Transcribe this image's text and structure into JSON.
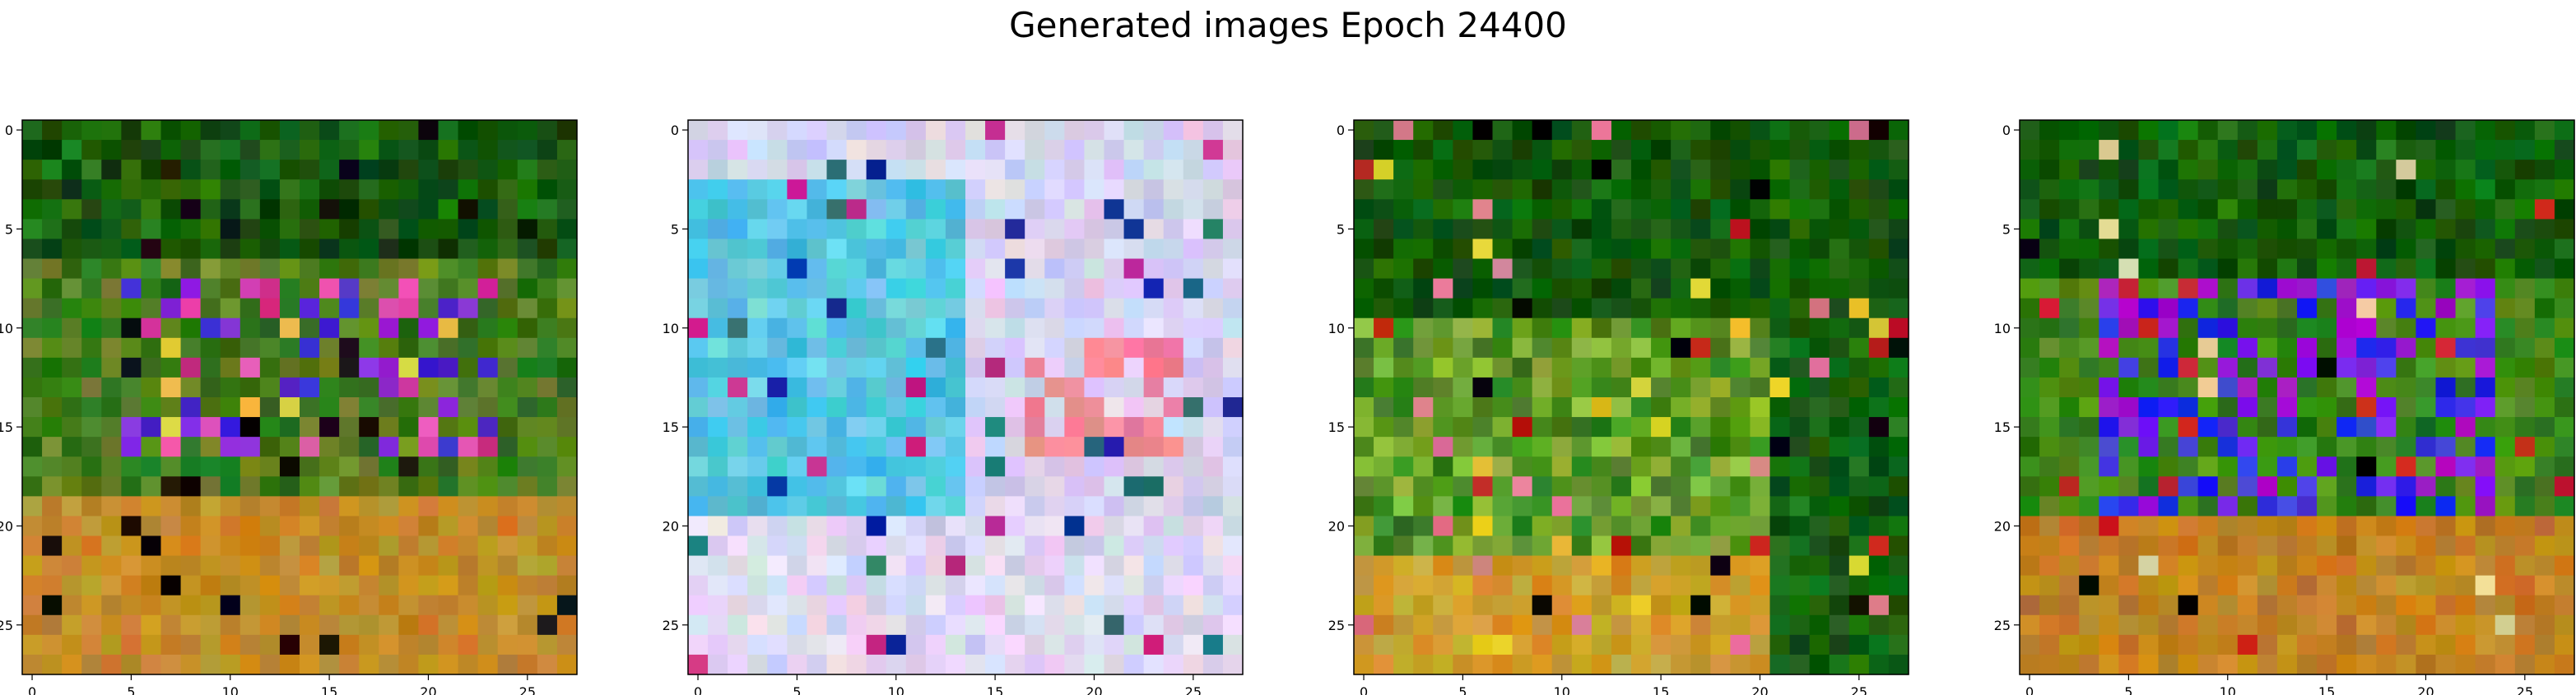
{
  "figure": {
    "title": "Generated images Epoch 24400"
  },
  "chart_data": [
    {
      "type": "heatmap",
      "title": "",
      "style": "greenfield",
      "description_colors": [
        "#0f6b0a",
        "#2a8a12",
        "#3a3ad8",
        "#c0287e",
        "#c8a828",
        "#d8821a"
      ],
      "xlim": [
        -0.5,
        27.5
      ],
      "ylim": [
        27.5,
        -0.5
      ],
      "xticks": [
        0,
        5,
        10,
        15,
        20,
        25
      ],
      "yticks": [
        0,
        5,
        10,
        15,
        20,
        25
      ]
    },
    {
      "type": "heatmap",
      "title": "",
      "style": "pastel",
      "description_colors": [
        "#4fd0e4",
        "#2aa8c8",
        "#c8c8f0",
        "#e8c8ec",
        "#f07890",
        "#1a3aa8"
      ],
      "xlim": [
        -0.5,
        27.5
      ],
      "ylim": [
        27.5,
        -0.5
      ],
      "xticks": [
        0,
        5,
        10,
        15,
        20,
        25
      ],
      "yticks": [
        0,
        5,
        10,
        15,
        20,
        25
      ]
    },
    {
      "type": "heatmap",
      "title": "",
      "style": "forest",
      "description_colors": [
        "#0c5a08",
        "#2a8a10",
        "#9ac83a",
        "#e0a820",
        "#c0281a",
        "#000000"
      ],
      "xlim": [
        -0.5,
        27.5
      ],
      "ylim": [
        27.5,
        -0.5
      ],
      "xticks": [
        0,
        5,
        10,
        15,
        20,
        25
      ],
      "yticks": [
        0,
        5,
        10,
        15,
        20,
        25
      ]
    },
    {
      "type": "heatmap",
      "title": "",
      "style": "bluefield",
      "description_colors": [
        "#0c6a08",
        "#1818e0",
        "#8020e0",
        "#2a8a10",
        "#c88a18",
        "#e0a030"
      ],
      "xlim": [
        -0.5,
        27.5
      ],
      "ylim": [
        27.5,
        -0.5
      ],
      "xticks": [
        0,
        5,
        10,
        15,
        20,
        25
      ],
      "yticks": [
        0,
        5,
        10,
        15,
        20,
        25
      ]
    }
  ]
}
